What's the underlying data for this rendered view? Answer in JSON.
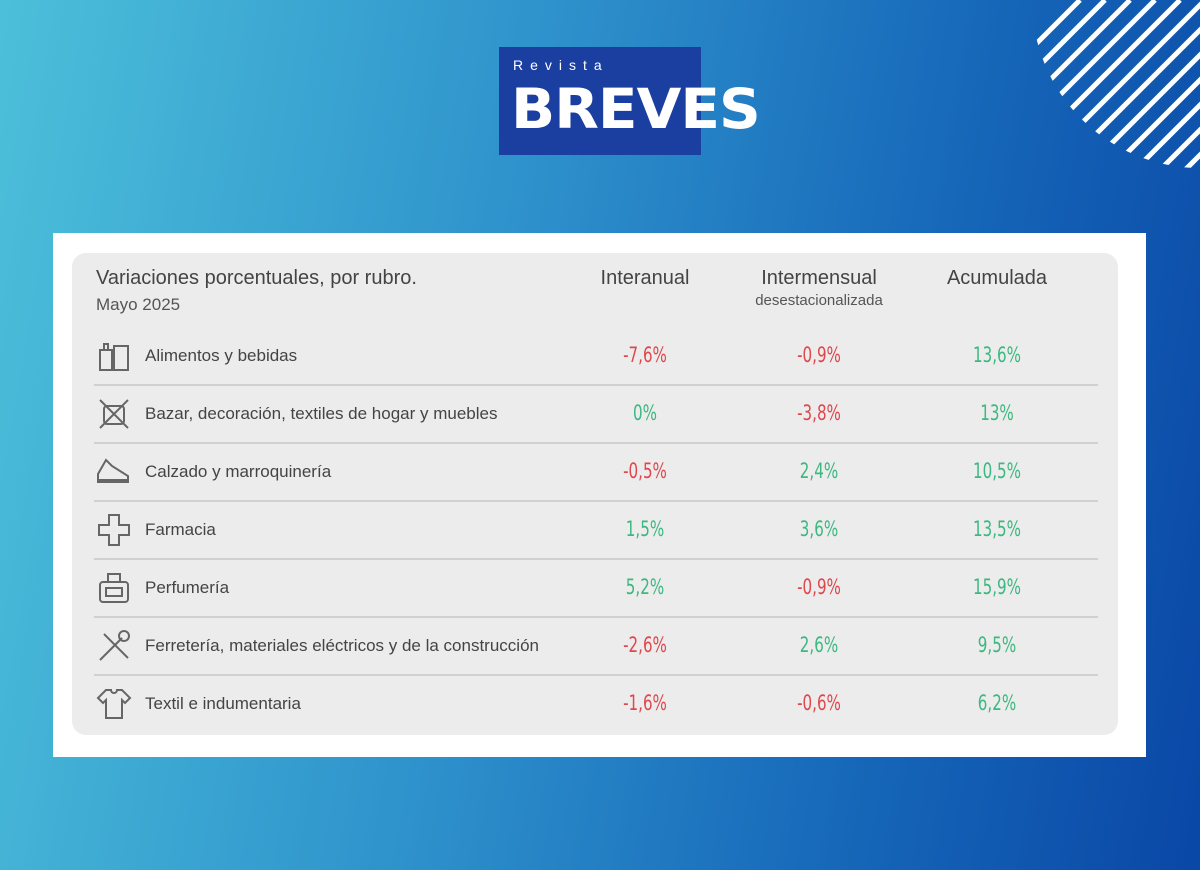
{
  "logo": {
    "small": "Revista",
    "big": "BREVES"
  },
  "table": {
    "title": "Variaciones porcentuales, por rubro.",
    "subtitle": "Mayo 2025",
    "columns": [
      {
        "label": "Interanual"
      },
      {
        "label": "Intermensual",
        "sublabel": "desestacionalizada"
      },
      {
        "label": "Acumulada"
      }
    ],
    "rows": [
      [
        "Alimentos y bebidas",
        "-7,6%",
        "-0,9%",
        "13,6%"
      ],
      [
        "Bazar, decoración, textiles de hogar y muebles",
        "0%",
        "-3,8%",
        "13%"
      ],
      [
        "Calzado y marroquinería",
        "-0,5%",
        "2,4%",
        "10,5%"
      ],
      [
        "Farmacia",
        "1,5%",
        "3,6%",
        "13,5%"
      ],
      [
        "Perfumería",
        "5,2%",
        "-0,9%",
        "15,9%"
      ],
      [
        "Ferretería, materiales eléctricos y de la construcción",
        "-2,6%",
        "2,6%",
        "9,5%"
      ],
      [
        "Textil e indumentaria",
        "-1,6%",
        "-0,6%",
        "6,2%"
      ]
    ]
  }
}
